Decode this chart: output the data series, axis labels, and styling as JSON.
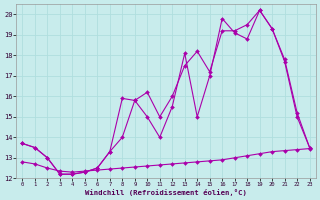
{
  "background_color": "#c8ecec",
  "grid_color": "#b0dede",
  "line_color": "#aa00aa",
  "xlabel": "Windchill (Refroidissement éolien,°C)",
  "xlim": [
    -0.5,
    23.5
  ],
  "ylim": [
    12,
    20.5
  ],
  "yticks": [
    12,
    13,
    14,
    15,
    16,
    17,
    18,
    19,
    20
  ],
  "xticks": [
    0,
    1,
    2,
    3,
    4,
    5,
    6,
    7,
    8,
    9,
    10,
    11,
    12,
    13,
    14,
    15,
    16,
    17,
    18,
    19,
    20,
    21,
    22,
    23
  ],
  "line1_x": [
    0,
    1,
    2,
    3,
    4,
    5,
    6,
    7,
    8,
    9,
    10,
    11,
    12,
    13,
    14,
    15,
    16,
    17,
    18,
    19,
    20,
    21,
    22,
    23
  ],
  "line1_y": [
    13.7,
    13.5,
    13.0,
    12.2,
    12.2,
    12.3,
    12.5,
    13.3,
    15.9,
    15.8,
    15.0,
    14.0,
    15.5,
    18.1,
    15.0,
    17.0,
    19.8,
    19.1,
    18.8,
    20.2,
    19.3,
    17.7,
    15.0,
    13.5
  ],
  "line2_x": [
    0,
    1,
    2,
    3,
    4,
    5,
    6,
    7,
    8,
    9,
    10,
    11,
    12,
    13,
    14,
    15,
    16,
    17,
    18,
    19,
    20,
    21,
    22,
    23
  ],
  "line2_y": [
    13.7,
    13.5,
    13.0,
    12.2,
    12.2,
    12.3,
    12.5,
    13.3,
    14.0,
    15.8,
    16.2,
    15.0,
    16.0,
    17.5,
    18.2,
    17.2,
    19.2,
    19.2,
    19.5,
    20.2,
    19.3,
    17.8,
    15.2,
    13.5
  ],
  "line3_x": [
    0,
    1,
    2,
    3,
    4,
    5,
    6,
    7,
    8,
    9,
    10,
    11,
    12,
    13,
    14,
    15,
    16,
    17,
    18,
    19,
    20,
    21,
    22,
    23
  ],
  "line3_y": [
    12.8,
    12.7,
    12.5,
    12.35,
    12.3,
    12.35,
    12.4,
    12.45,
    12.5,
    12.55,
    12.6,
    12.65,
    12.7,
    12.75,
    12.8,
    12.85,
    12.9,
    13.0,
    13.1,
    13.2,
    13.3,
    13.35,
    13.4,
    13.45
  ]
}
